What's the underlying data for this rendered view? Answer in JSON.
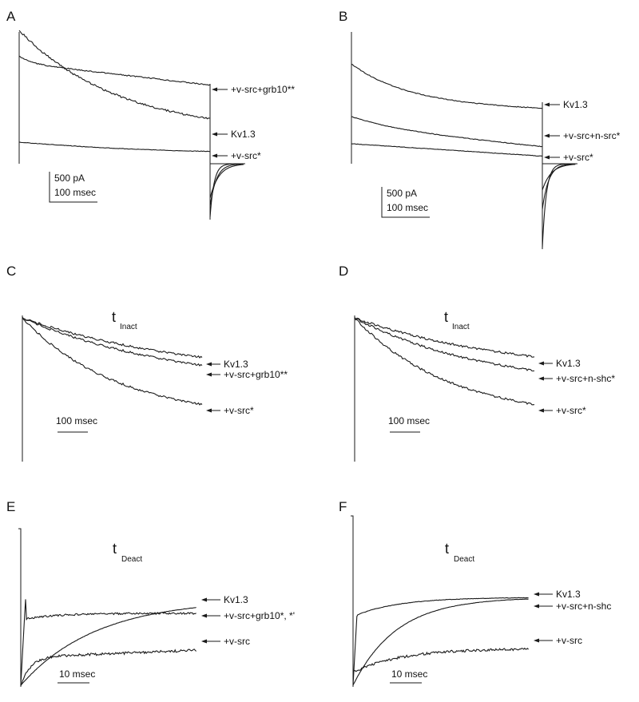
{
  "chart_data": [
    {
      "type": "line",
      "panel_label": "A",
      "scale_bar": {
        "current": "500 pA",
        "time": "100 msec"
      },
      "series": [
        {
          "name": "+v-src+grb10**"
        },
        {
          "name": "Kv1.3"
        },
        {
          "name": "+v-src*"
        }
      ]
    },
    {
      "type": "line",
      "panel_label": "B",
      "scale_bar": {
        "current": "500 pA",
        "time": "100 msec"
      },
      "series": [
        {
          "name": "Kv1.3"
        },
        {
          "name": "+v-src+n-src*"
        },
        {
          "name": "+v-src*"
        }
      ]
    },
    {
      "type": "line",
      "panel_label": "C",
      "tau": {
        "symbol": "t",
        "subscript": "Inact"
      },
      "scale_bar": {
        "time": "100 msec"
      },
      "series": [
        {
          "name": "Kv1.3"
        },
        {
          "name": "+v-src+grb10**"
        },
        {
          "name": "+v-src*"
        }
      ]
    },
    {
      "type": "line",
      "panel_label": "D",
      "tau": {
        "symbol": "t",
        "subscript": "Inact"
      },
      "scale_bar": {
        "time": "100 msec"
      },
      "series": [
        {
          "name": "Kv1.3"
        },
        {
          "name": "+v-src+n-shc*"
        },
        {
          "name": "+v-src*"
        }
      ]
    },
    {
      "type": "line",
      "panel_label": "E",
      "tau": {
        "symbol": "t",
        "subscript": "Deact"
      },
      "scale_bar": {
        "time": "10 msec"
      },
      "series": [
        {
          "name": "Kv1.3"
        },
        {
          "name": "+v-src+grb10*, *'"
        },
        {
          "name": "+v-src"
        }
      ]
    },
    {
      "type": "line",
      "panel_label": "F",
      "tau": {
        "symbol": "t",
        "subscript": "Deact"
      },
      "scale_bar": {
        "time": "10 msec"
      },
      "series": [
        {
          "name": "Kv1.3"
        },
        {
          "name": "+v-src+n-shc"
        },
        {
          "name": "+v-src"
        }
      ]
    }
  ]
}
